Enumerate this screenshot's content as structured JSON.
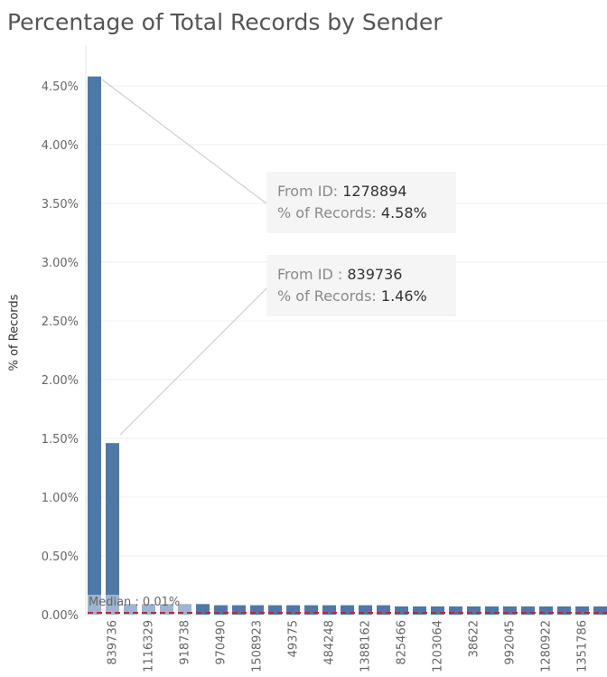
{
  "title": "Percentage of Total Records by Sender",
  "chart_data": {
    "type": "bar",
    "ylabel": "% of Records",
    "ylim": [
      0,
      4.5
    ],
    "yticks": [
      "0.00%",
      "0.50%",
      "1.00%",
      "1.50%",
      "2.00%",
      "2.50%",
      "3.00%",
      "3.50%",
      "4.00%",
      "4.50%"
    ],
    "grid": true,
    "bar_color": "#4e79a7",
    "categories": [
      "1278894",
      "839736",
      "",
      "1116329",
      "",
      "918738",
      "",
      "970490",
      "",
      "1508923",
      "",
      "49375",
      "",
      "484248",
      "",
      "1388162",
      "",
      "825466",
      "",
      "1203064",
      "",
      "38622",
      "",
      "992045",
      "",
      "1280922",
      "",
      "1351786",
      ""
    ],
    "labeled_categories": [
      "839736",
      "1116329",
      "918738",
      "970490",
      "1508923",
      "49375",
      "484248",
      "1388162",
      "825466",
      "1203064",
      "38622",
      "992045",
      "1280922",
      "1351786"
    ],
    "values": [
      4.58,
      1.46,
      0.09,
      0.09,
      0.09,
      0.09,
      0.09,
      0.08,
      0.08,
      0.08,
      0.08,
      0.08,
      0.08,
      0.08,
      0.08,
      0.08,
      0.08,
      0.07,
      0.07,
      0.07,
      0.07,
      0.07,
      0.07,
      0.07,
      0.07,
      0.07,
      0.07,
      0.07,
      0.07
    ],
    "reference_line": {
      "label": "Median : 0.01%",
      "value": 0.01,
      "color": "#c0282d"
    }
  },
  "tooltips": [
    {
      "id_label": "From ID:",
      "id_value": "1278894",
      "pct_label": "% of Records:",
      "pct_value": "4.58%"
    },
    {
      "id_label": "From ID :",
      "id_value": "839736",
      "pct_label": "% of Records:",
      "pct_value": "1.46%"
    }
  ]
}
